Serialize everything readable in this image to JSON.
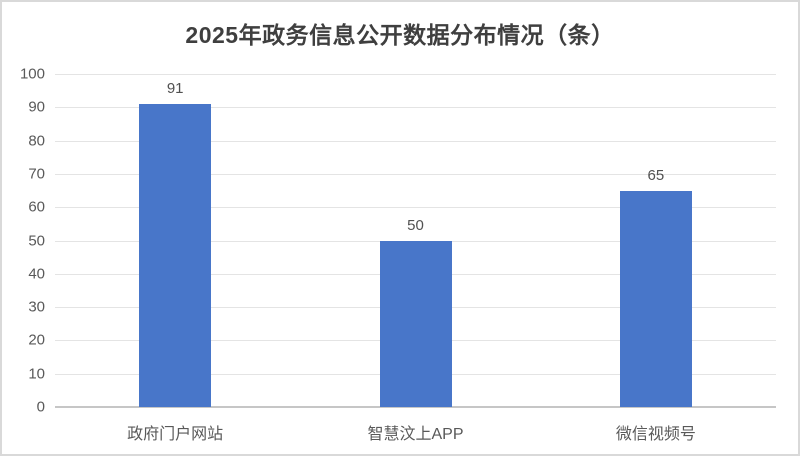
{
  "chart_data": {
    "type": "bar",
    "title": "2025年政务信息公开数据分布情况（条）",
    "categories": [
      "政府门户网站",
      "智慧汶上APP",
      "微信视频号"
    ],
    "values": [
      91,
      50,
      65
    ],
    "data_labels": [
      "91",
      "50",
      "65"
    ],
    "xlabel": "",
    "ylabel": "",
    "ylim": [
      0,
      100
    ],
    "ytick_step": 10,
    "ytick_labels": [
      "0",
      "10",
      "20",
      "30",
      "40",
      "50",
      "60",
      "70",
      "80",
      "90",
      "100"
    ],
    "grid": "horizontal",
    "legend": "none",
    "bar_color": "#4876c9",
    "title_color": "#3f3f3f",
    "axis_label_color": "#595959",
    "gridline_color": "#e4e4e4",
    "axis_line_color": "#c6c6c6",
    "frame_border_color": "#d9d9d9"
  }
}
